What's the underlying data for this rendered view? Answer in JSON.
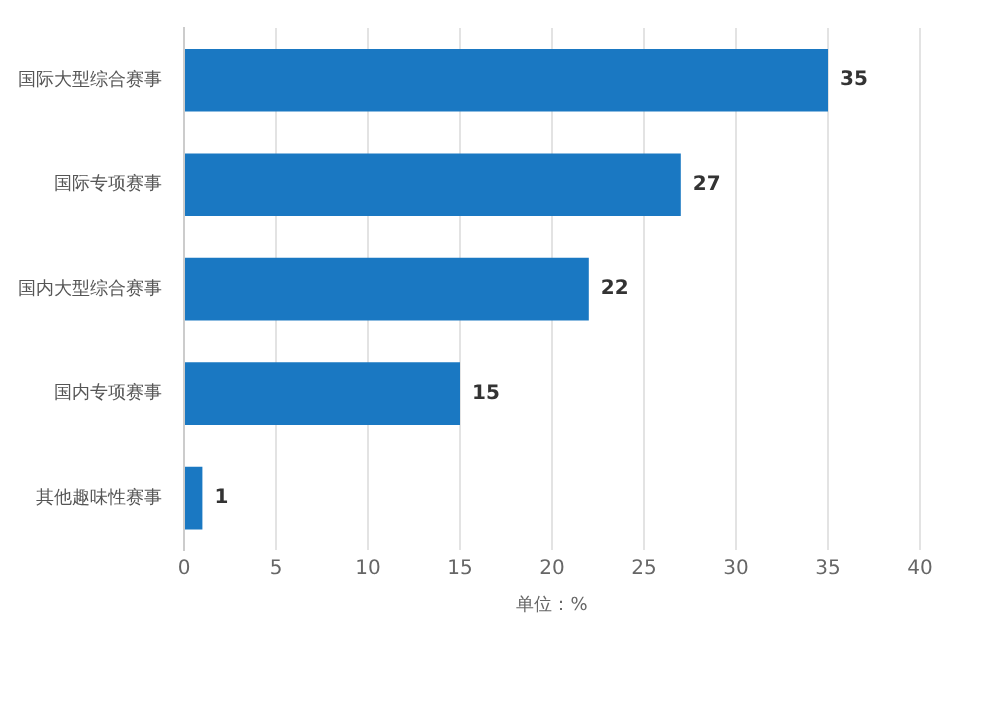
{
  "chart_data": {
    "type": "bar",
    "orientation": "horizontal",
    "categories": [
      "国际大型综合赛事",
      "国际专项赛事",
      "国内大型综合赛事",
      "国内专项赛事",
      "其他趣味性赛事"
    ],
    "values": [
      35,
      27,
      22,
      15,
      1
    ],
    "color": "#1a78c2",
    "xlim": [
      0,
      40
    ],
    "xticks": [
      0,
      5,
      10,
      15,
      20,
      25,
      30,
      35,
      40
    ],
    "xlabel": "单位：%",
    "grid": "x",
    "data_labels": true
  }
}
